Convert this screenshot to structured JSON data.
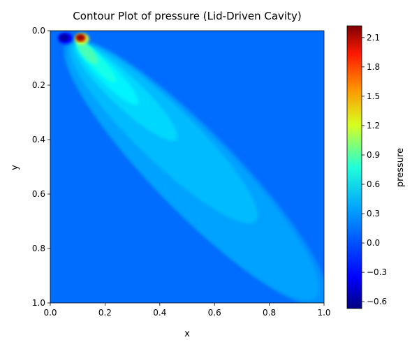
{
  "chart_data": {
    "type": "contour",
    "title": "Contour Plot of pressure (Lid-Driven Cavity)",
    "xlabel": "x",
    "ylabel": "y",
    "xlim": [
      0,
      1
    ],
    "ylim": [
      0,
      1
    ],
    "y_axis_inverted": true,
    "x_ticks": [
      "0.0",
      "0.2",
      "0.4",
      "0.6",
      "0.8",
      "1.0"
    ],
    "y_ticks": [
      "0.0",
      "0.2",
      "0.4",
      "0.6",
      "0.8",
      "1.0"
    ],
    "colorbar": {
      "label": "pressure",
      "colormap": "jet",
      "range": [
        -0.67,
        2.22
      ],
      "ticks": [
        "2.1",
        "1.8",
        "1.5",
        "1.2",
        "0.9",
        "0.6",
        "0.3",
        "0.0",
        "−0.3",
        "−0.6"
      ],
      "tick_values": [
        2.1,
        1.8,
        1.5,
        1.2,
        0.9,
        0.6,
        0.3,
        0.0,
        -0.3,
        -0.6
      ]
    },
    "background_value": 0.0,
    "features": [
      {
        "kind": "diagonal-band",
        "x0": 0.06,
        "y0": 0.04,
        "x1": 1.0,
        "y1": 1.0,
        "value": 0.1
      },
      {
        "kind": "diagonal-band",
        "x0": 0.07,
        "y0": 0.05,
        "x1": 0.97,
        "y1": 0.98,
        "value": 0.15
      },
      {
        "kind": "diagonal-band",
        "x0": 0.08,
        "y0": 0.05,
        "x1": 0.75,
        "y1": 0.7,
        "value": 0.22
      },
      {
        "kind": "diagonal-band",
        "x0": 0.09,
        "y0": 0.05,
        "x1": 0.46,
        "y1": 0.4,
        "value": 0.3
      },
      {
        "kind": "diagonal-band",
        "x0": 0.1,
        "y0": 0.05,
        "x1": 0.32,
        "y1": 0.27,
        "value": 0.38
      },
      {
        "kind": "diagonal-band",
        "x0": 0.1,
        "y0": 0.04,
        "x1": 0.24,
        "y1": 0.19,
        "value": 0.48
      },
      {
        "kind": "diagonal-band",
        "x0": 0.1,
        "y0": 0.04,
        "x1": 0.17,
        "y1": 0.12,
        "value": 0.62
      },
      {
        "kind": "spot",
        "x": 0.115,
        "y": 0.03,
        "value": 1.0
      },
      {
        "kind": "spot",
        "x": 0.112,
        "y": 0.028,
        "value": 1.6
      },
      {
        "kind": "spot",
        "x": 0.11,
        "y": 0.025,
        "value": 2.15
      },
      {
        "kind": "spot",
        "x": 0.055,
        "y": 0.028,
        "value": -0.3
      },
      {
        "kind": "spot",
        "x": 0.05,
        "y": 0.025,
        "value": -0.6
      }
    ]
  },
  "colors": {
    "background": "#ffffff",
    "axis": "#000000"
  }
}
